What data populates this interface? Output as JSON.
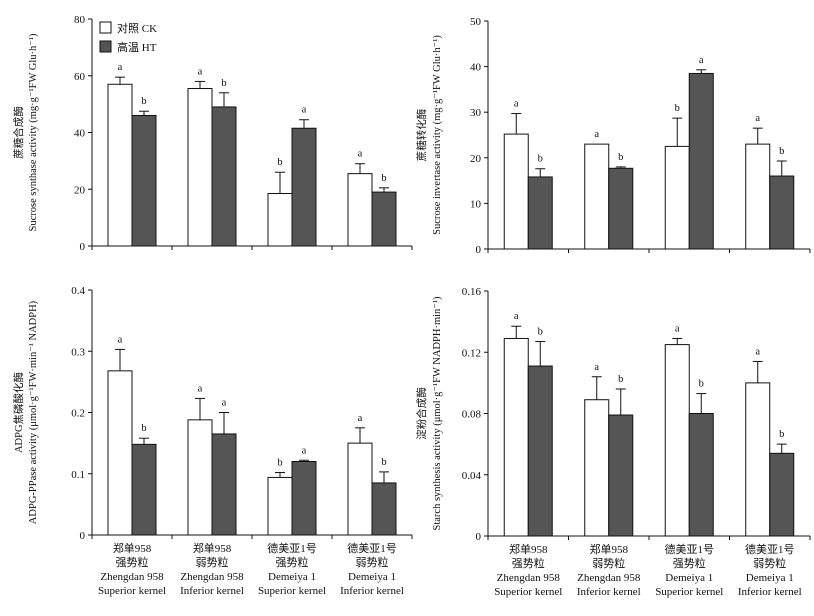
{
  "legend": {
    "ck": "对照 CK",
    "ht": "高温 HT"
  },
  "colors": {
    "ck": "#ffffff",
    "ht": "#555555",
    "stroke": "#111111"
  },
  "categories": [
    [
      "郑单958",
      "强势粒",
      "Zhengdan 958",
      "Superior kernel"
    ],
    [
      "郑单958",
      "弱势粒",
      "Zhengdan 958",
      "Inferior kernel"
    ],
    [
      "德美亚1号",
      "强势粒",
      "Demeiya 1",
      "Superior kernel"
    ],
    [
      "德美亚1号",
      "弱势粒",
      "Demeiya 1",
      "Inferior kernel"
    ]
  ],
  "chart_data": [
    {
      "type": "bar",
      "ylabel_cn": "蔗糖合成酶",
      "ylabel_en": "Sucrose synthase activity (mg·g⁻¹FW Glu·h⁻¹)",
      "ylim": [
        0,
        80
      ],
      "yticks": [
        0,
        20,
        40,
        60,
        80
      ],
      "tick_labels": [
        "0",
        "20",
        "40",
        "60",
        "80"
      ],
      "series": [
        {
          "key": "ck",
          "values": [
            57,
            55.5,
            18.5,
            25.5
          ],
          "errors": [
            2.5,
            2.5,
            7.5,
            3.5
          ],
          "letters": [
            "a",
            "a",
            "b",
            "a"
          ]
        },
        {
          "key": "ht",
          "values": [
            46,
            49,
            41.5,
            19
          ],
          "errors": [
            1.5,
            5,
            3,
            1.5
          ],
          "letters": [
            "b",
            "b",
            "a",
            "b"
          ]
        }
      ]
    },
    {
      "type": "bar",
      "ylabel_cn": "蔗糖转化酶",
      "ylabel_en": "Sucrose invertase activity (mg·g⁻¹FW Glu·h⁻¹)",
      "ylim": [
        0,
        50
      ],
      "yticks": [
        0,
        10,
        20,
        30,
        40,
        50
      ],
      "tick_labels": [
        "0",
        "10",
        "20",
        "30",
        "40",
        "50"
      ],
      "series": [
        {
          "key": "ck",
          "values": [
            25.2,
            23,
            22.5,
            23
          ],
          "errors": [
            4.5,
            0,
            6.2,
            3.5
          ],
          "letters": [
            "a",
            "a",
            "b",
            "a"
          ]
        },
        {
          "key": "ht",
          "values": [
            15.8,
            17.7,
            38.5,
            16
          ],
          "errors": [
            1.8,
            0.3,
            0.8,
            3.3
          ],
          "letters": [
            "b",
            "b",
            "a",
            "b"
          ]
        }
      ]
    },
    {
      "type": "bar",
      "ylabel_cn": "ADPG焦磷酸化酶",
      "ylabel_en": "ADPG-PPase activity (μmol·g⁻¹FW·min⁻¹ NADPH)",
      "ylim": [
        0,
        0.4
      ],
      "yticks": [
        0,
        0.1,
        0.2,
        0.3,
        0.4
      ],
      "tick_labels": [
        "0",
        "0.1",
        "0.2",
        "0.3",
        "0.4"
      ],
      "series": [
        {
          "key": "ck",
          "values": [
            0.268,
            0.188,
            0.094,
            0.15
          ],
          "errors": [
            0.035,
            0.035,
            0.008,
            0.025
          ],
          "letters": [
            "a",
            "a",
            "b",
            "a"
          ]
        },
        {
          "key": "ht",
          "values": [
            0.148,
            0.165,
            0.12,
            0.085
          ],
          "errors": [
            0.01,
            0.035,
            0.002,
            0.018
          ],
          "letters": [
            "b",
            "a",
            "a",
            "b"
          ]
        }
      ]
    },
    {
      "type": "bar",
      "ylabel_cn": "淀粉合成酶",
      "ylabel_en": "Starch synthesis activity (μmol·g⁻¹FW NADPH·min⁻¹)",
      "ylim": [
        0,
        0.16
      ],
      "yticks": [
        0,
        0.04,
        0.08,
        0.12,
        0.16
      ],
      "tick_labels": [
        "0",
        "0.04",
        "0.08",
        "0.12",
        "0.16"
      ],
      "series": [
        {
          "key": "ck",
          "values": [
            0.129,
            0.089,
            0.125,
            0.1
          ],
          "errors": [
            0.008,
            0.015,
            0.004,
            0.014
          ],
          "letters": [
            "a",
            "a",
            "a",
            "a"
          ]
        },
        {
          "key": "ht",
          "values": [
            0.111,
            0.079,
            0.08,
            0.054
          ],
          "errors": [
            0.016,
            0.017,
            0.013,
            0.006
          ],
          "letters": [
            "b",
            "b",
            "b",
            "b"
          ]
        }
      ]
    }
  ]
}
